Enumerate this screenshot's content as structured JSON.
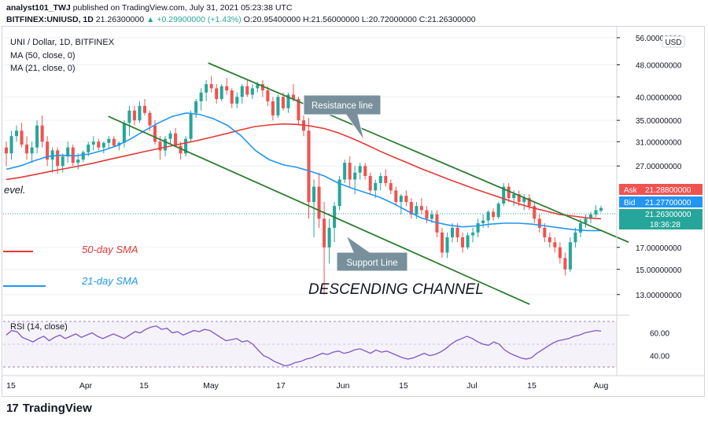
{
  "header": {
    "line1_user": "analyst101_TWJ",
    "line1_rest": "published on TradingView.com, July 31, 2021 05:23:38 UTC",
    "line2_symbol": "BITFINEX:UNIUSD, 1D",
    "line2_last": "21.26300000",
    "line2_change": "+0.29900000 (+1.43%)",
    "line2_ohlc": "O:20.95400000 H:21.56000000 L:20.72000000 C:21.26300000"
  },
  "legend": {
    "title": "UNI / Dollar, 1D, BITFINEX",
    "ma50": "MA (50, close, 0)",
    "ma21": "MA (21, close, 0)",
    "rsi": "RSI (14, close)"
  },
  "annotations": {
    "resistance": "Resistance line",
    "support": "Support Line",
    "channel": "DESCENDING CHANNEL",
    "sma50": "50-day SMA",
    "sma21": "21-day SMA",
    "level_fragment": "evel."
  },
  "axis": {
    "currency": "USD",
    "price_ticks": [
      "56.00000000",
      "48.00000000",
      "40.00000000",
      "35.00000000",
      "31.00000000",
      "27.00000000",
      "17.00000000",
      "15.00000000",
      "13.00000000"
    ],
    "rsi_ticks": [
      "60.00",
      "40.00"
    ],
    "time_ticks": [
      "15",
      "Apr",
      "15",
      "May",
      "17",
      "Jun",
      "15",
      "Jul",
      "15",
      "Aug"
    ]
  },
  "price_labels": {
    "ask_label": "Ask",
    "ask": "21.28800000",
    "bid_label": "Bid",
    "bid": "21.27700000",
    "last": "21.26300000",
    "countdown": "18:36:28"
  },
  "footer": {
    "brand": "TradingView",
    "logo": "17"
  },
  "colors": {
    "up": "#26a69a",
    "down": "#ef5350",
    "ma50": "#e53935",
    "ma21": "#2196f3",
    "channel": "#2e7d32",
    "rsi": "#7e57c2",
    "ask": "#ef5350",
    "bid": "#2196f3"
  },
  "chart_data": {
    "type": "candlestick",
    "title": "UNI / Dollar, 1D, BITFINEX",
    "y_scale": "log",
    "ylim": [
      12.2,
      57
    ],
    "candles_ohlc": [
      [
        30,
        31,
        27,
        29
      ],
      [
        29,
        33,
        28,
        32
      ],
      [
        32,
        34,
        31,
        33
      ],
      [
        33,
        34.5,
        30,
        30.5
      ],
      [
        30.5,
        32,
        28,
        29
      ],
      [
        29,
        31,
        27.5,
        30
      ],
      [
        30,
        35,
        29,
        34
      ],
      [
        34,
        36,
        30,
        31
      ],
      [
        31,
        32,
        27,
        28
      ],
      [
        28,
        30,
        26,
        29.5
      ],
      [
        29.5,
        30,
        25.8,
        27
      ],
      [
        27,
        29,
        26,
        28.5
      ],
      [
        28.5,
        31,
        27.5,
        30
      ],
      [
        30,
        30.5,
        27,
        27.5
      ],
      [
        27.5,
        29,
        26.5,
        28
      ],
      [
        28,
        29.5,
        27.6,
        29.2
      ],
      [
        29.2,
        31,
        28.5,
        30.5
      ],
      [
        30.5,
        32,
        29.5,
        31
      ],
      [
        31,
        31.5,
        29.5,
        30
      ],
      [
        30,
        31,
        29,
        30.8
      ],
      [
        30.8,
        32,
        29.8,
        31.5
      ],
      [
        31.5,
        32,
        30,
        30.3
      ],
      [
        30.3,
        31,
        29.5,
        30.8
      ],
      [
        30.8,
        35,
        30,
        34.5
      ],
      [
        34.5,
        38,
        32,
        37
      ],
      [
        37,
        38,
        34,
        35
      ],
      [
        35,
        39,
        34.5,
        38
      ],
      [
        38,
        39.5,
        36,
        36.5
      ],
      [
        36.5,
        37,
        33,
        34
      ],
      [
        34,
        35,
        30.5,
        31
      ],
      [
        31,
        32,
        28,
        29.5
      ],
      [
        29.5,
        32,
        28.5,
        31.5
      ],
      [
        31.5,
        33,
        30.5,
        32.5
      ],
      [
        32.5,
        33.5,
        30,
        30.3
      ],
      [
        30.3,
        31,
        28,
        29
      ],
      [
        29,
        32,
        28.5,
        31.5
      ],
      [
        31.5,
        37,
        31,
        36.5
      ],
      [
        36.5,
        39.5,
        35.5,
        39
      ],
      [
        39,
        42,
        37,
        41
      ],
      [
        41,
        44,
        39,
        43
      ],
      [
        43,
        45,
        41,
        42
      ],
      [
        42,
        43,
        38.5,
        39.5
      ],
      [
        39.5,
        43,
        39,
        42.5
      ],
      [
        42.5,
        44.5,
        40.5,
        41.5
      ],
      [
        41.5,
        42,
        37.5,
        38.5
      ],
      [
        38.5,
        41,
        37.5,
        40
      ],
      [
        40,
        43,
        38.5,
        42.5
      ],
      [
        42.5,
        44,
        40,
        40.5
      ],
      [
        40.5,
        43,
        39.5,
        42
      ],
      [
        42,
        43.5,
        41,
        43
      ],
      [
        43,
        44,
        40,
        41.5
      ],
      [
        41.5,
        42.5,
        38,
        39
      ],
      [
        39,
        40,
        35,
        36
      ],
      [
        36,
        40.5,
        35.5,
        40
      ],
      [
        40,
        41,
        37,
        37.5
      ],
      [
        37.5,
        41,
        36.5,
        40.5
      ],
      [
        40.5,
        43,
        39,
        39.5
      ],
      [
        39.5,
        40,
        34,
        35
      ],
      [
        35,
        36,
        32,
        33
      ],
      [
        33,
        35.5,
        20,
        22
      ],
      [
        22,
        25,
        18,
        24
      ],
      [
        24,
        26,
        19,
        20
      ],
      [
        20,
        22,
        13,
        17
      ],
      [
        17,
        20,
        15.5,
        19
      ],
      [
        19,
        22,
        17.5,
        21.5
      ],
      [
        21.5,
        25.5,
        21,
        25
      ],
      [
        25,
        28,
        24.5,
        27.5
      ],
      [
        27.5,
        28.5,
        24,
        25
      ],
      [
        25,
        27,
        23,
        26
      ],
      [
        26,
        27.5,
        25,
        27
      ],
      [
        27,
        27.5,
        25,
        25.5
      ],
      [
        25.5,
        26,
        23,
        23.5
      ],
      [
        23.5,
        25,
        22.5,
        24.5
      ],
      [
        24.5,
        26,
        23.5,
        25.5
      ],
      [
        25.5,
        26.5,
        24,
        24.5
      ],
      [
        24.5,
        25,
        23,
        23.5
      ],
      [
        23.5,
        24,
        21.5,
        22
      ],
      [
        22,
        23,
        20.5,
        22.8
      ],
      [
        22.8,
        23.5,
        21.5,
        22
      ],
      [
        22,
        22.5,
        20,
        20.5
      ],
      [
        20.5,
        22,
        20,
        21.5
      ],
      [
        21.5,
        22.5,
        20.5,
        21
      ],
      [
        21,
        21.5,
        19.5,
        20
      ],
      [
        20,
        21,
        19.5,
        20.5
      ],
      [
        20.5,
        21,
        18,
        18.5
      ],
      [
        18.5,
        19,
        16,
        16.5
      ],
      [
        16.5,
        18.5,
        16,
        18
      ],
      [
        18,
        19.5,
        17.5,
        19
      ],
      [
        19,
        19.5,
        17.5,
        18
      ],
      [
        18,
        18.5,
        16.5,
        17
      ],
      [
        17,
        18.5,
        16.8,
        18.2
      ],
      [
        18.2,
        19,
        17.5,
        18.5
      ],
      [
        18.5,
        20,
        18,
        19.5
      ],
      [
        19.5,
        20.5,
        19,
        19.8
      ],
      [
        19.8,
        21,
        19,
        20.8
      ],
      [
        20.8,
        21.2,
        19.8,
        20.2
      ],
      [
        20.2,
        22,
        20,
        21.8
      ],
      [
        21.8,
        24.5,
        21.5,
        24
      ],
      [
        24,
        24.5,
        22,
        22.5
      ],
      [
        22.5,
        23.5,
        21.5,
        23
      ],
      [
        23,
        23.5,
        21.5,
        22
      ],
      [
        22,
        23,
        21,
        22.5
      ],
      [
        22.5,
        23,
        21,
        21.5
      ],
      [
        21.5,
        22,
        19.5,
        20
      ],
      [
        20,
        20.5,
        18.5,
        19
      ],
      [
        19,
        19.5,
        17.5,
        18
      ],
      [
        18,
        18.5,
        17,
        17.5
      ],
      [
        17.5,
        18,
        16.5,
        17
      ],
      [
        17,
        17.5,
        15.5,
        16
      ],
      [
        16,
        16.5,
        14.5,
        15
      ],
      [
        15,
        18,
        14.8,
        17.5
      ],
      [
        17.5,
        19,
        17,
        18.5
      ],
      [
        18.5,
        20,
        18,
        19.5
      ],
      [
        19.5,
        20.5,
        19,
        20
      ],
      [
        20,
        20.8,
        19.5,
        20.5
      ],
      [
        20.5,
        21.6,
        20.2,
        21
      ],
      [
        20.95,
        21.56,
        20.72,
        21.263
      ]
    ],
    "ma50": [
      25,
      25.3,
      25.7,
      26.1,
      26.5,
      26.9,
      27.3,
      27.8,
      28.3,
      28.8,
      29.3,
      29.8,
      30.3,
      30.8,
      31.3,
      31.9,
      32.5,
      33.2,
      33.8,
      34.1,
      34.3,
      34.2,
      33.9,
      33.4,
      32.6,
      31.6,
      30.5,
      29.4,
      28.4,
      27.5,
      26.6,
      25.8,
      25,
      24.3,
      23.6,
      23,
      22.4,
      21.8,
      21.3,
      20.9,
      20.5,
      20.3,
      20.1,
      20
    ],
    "ma21": [
      26.5,
      27,
      27.8,
      28.5,
      28.7,
      28.6,
      28.9,
      29.5,
      30.3,
      31.5,
      33,
      34.5,
      35.8,
      36.5,
      36.2,
      35.3,
      34,
      32,
      29.5,
      28,
      27.2,
      26.8,
      26.2,
      25.5,
      24.5,
      23.8,
      23.2,
      22.6,
      21.8,
      20.9,
      20.1,
      19.6,
      19.3,
      19.1,
      19.2,
      19.4,
      19.5,
      19.5,
      19.4,
      19.2,
      19,
      18.8,
      18.7,
      18.7
    ],
    "rsi": [
      58,
      62,
      61,
      56,
      54,
      52,
      55,
      57,
      53,
      56,
      58,
      55,
      57,
      59,
      56,
      58,
      60,
      57,
      55,
      57,
      59,
      57,
      55,
      58,
      61,
      60,
      63,
      65,
      66,
      63,
      64,
      60,
      61,
      58,
      60,
      62,
      61,
      63,
      62,
      59,
      56,
      53,
      54,
      55,
      52,
      53,
      50,
      45,
      40,
      38,
      35,
      33,
      31,
      32,
      34,
      35,
      37,
      38,
      40,
      42,
      41,
      43,
      44,
      42,
      43,
      45,
      46,
      44,
      42,
      45,
      43,
      44,
      42,
      40,
      38,
      37,
      38,
      40,
      42,
      40,
      41,
      43,
      46,
      50,
      53,
      55,
      57,
      55,
      52,
      50,
      49,
      52,
      50,
      45,
      42,
      40,
      38,
      37,
      38,
      42,
      45,
      48,
      51,
      53,
      54,
      55,
      57,
      58,
      60,
      61,
      62,
      61.5
    ],
    "rsi_ylim": [
      28,
      72
    ],
    "lines": [
      {
        "name": "Resistance line",
        "from": [
          0.294,
          48.5
        ],
        "to": [
          0.888,
          17.5
        ]
      },
      {
        "name": "Support Line",
        "from": [
          0.153,
          35.8
        ],
        "to": [
          0.748,
          12.3
        ]
      }
    ],
    "xlabel": "",
    "ylabel": "",
    "x_ticks": [
      "15",
      "Apr",
      "15",
      "May",
      "17",
      "Jun",
      "15",
      "Jul",
      "15",
      "Aug"
    ],
    "y_ticks": [
      56,
      48,
      40,
      35,
      31,
      27,
      17,
      15,
      13
    ]
  }
}
